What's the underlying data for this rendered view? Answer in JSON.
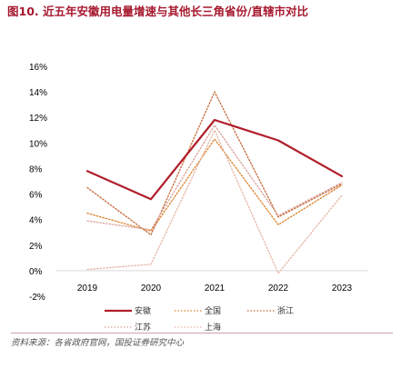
{
  "figure": {
    "title": "图10. 近五年安徽用电量增速与其他长三角省份/直辖市对比",
    "source": "资料来源：各省政府官网，国投证券研究中心"
  },
  "colors": {
    "anhui": "#b01e2a",
    "national": "#d9822b",
    "zhejiang": "#c46a3a",
    "jiangsu": "#dba39b",
    "shanghai": "#e6b8a8",
    "title": "#a6192e"
  },
  "chart_data": {
    "type": "line",
    "x": [
      "2019",
      "2020",
      "2021",
      "2022",
      "2023"
    ],
    "ylim": [
      -2,
      16
    ],
    "yticks": [
      "-2%",
      "0%",
      "2%",
      "4%",
      "6%",
      "8%",
      "10%",
      "12%",
      "14%",
      "16%"
    ],
    "ytick_values": [
      -2,
      0,
      2,
      4,
      6,
      8,
      10,
      12,
      14,
      16
    ],
    "y_unit": "%",
    "legend_position": "bottom",
    "series": [
      {
        "name": "安徽",
        "key": "anhui",
        "values": [
          7.8,
          5.6,
          11.8,
          10.2,
          7.4
        ]
      },
      {
        "name": "全国",
        "key": "national",
        "values": [
          4.5,
          3.1,
          10.3,
          3.6,
          6.7
        ]
      },
      {
        "name": "浙江",
        "key": "zhejiang",
        "values": [
          6.5,
          2.8,
          14.0,
          4.2,
          6.8
        ]
      },
      {
        "name": "江苏",
        "key": "jiangsu",
        "values": [
          3.9,
          3.2,
          11.4,
          4.3,
          6.9
        ]
      },
      {
        "name": "上海",
        "key": "shanghai",
        "values": [
          0.1,
          0.5,
          11.0,
          -0.2,
          5.9
        ]
      }
    ]
  }
}
